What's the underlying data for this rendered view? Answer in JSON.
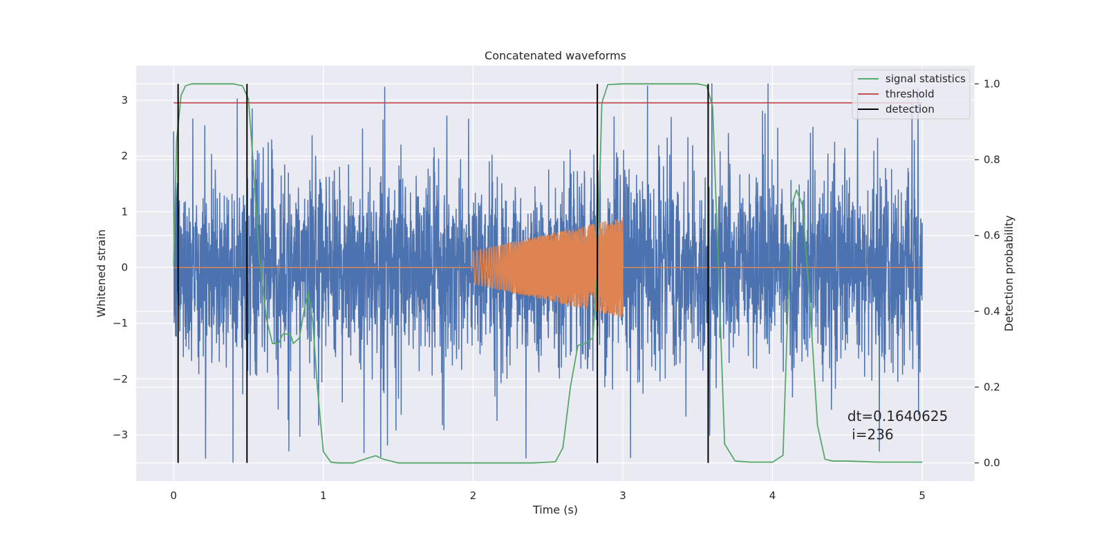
{
  "chart_data": {
    "type": "line",
    "title": "Concatenated waveforms",
    "xlabel": "Time (s)",
    "ylabel": "Whitened strain",
    "y2label": "Detection probability",
    "xlim": [
      -0.25,
      5.35
    ],
    "ylim": [
      -3.83,
      3.62
    ],
    "y2lim": [
      -0.048,
      1.048
    ],
    "xticks": [
      0,
      1,
      2,
      3,
      4,
      5
    ],
    "yticks": [
      -3,
      -2,
      -1,
      0,
      1,
      2,
      3
    ],
    "y2ticks": [
      0.0,
      0.2,
      0.4,
      0.6,
      0.8,
      1.0
    ],
    "y2tick_labels": [
      "0.0",
      "0.2",
      "0.4",
      "0.6",
      "0.8",
      "1.0"
    ],
    "grid": true,
    "legend_position": "top-right",
    "legend": [
      {
        "label": "signal statistics",
        "color": "#55a868"
      },
      {
        "label": "threshold",
        "color": "#c44e52"
      },
      {
        "label": "detection",
        "color": "#000000"
      }
    ],
    "series": [
      {
        "name": "",
        "axis": "left",
        "color": "#4c72b0",
        "kind": "noise",
        "x_range": [
          0,
          5
        ],
        "typical_range": [
          -1.6,
          1.6
        ],
        "extreme_max": 3.3,
        "extreme_min": -3.5
      },
      {
        "name": "",
        "axis": "left",
        "color": "#dd8452",
        "kind": "chirp",
        "x_range": [
          0,
          5
        ],
        "burst_start": 2.0,
        "burst_end": 3.0,
        "amplitude_start": 0.3,
        "amplitude_end": 0.9
      },
      {
        "name": "signal statistics",
        "axis": "right",
        "color": "#55a868",
        "x": [
          0,
          0.02,
          0.05,
          0.08,
          0.12,
          0.2,
          0.4,
          0.46,
          0.5,
          0.53,
          0.57,
          0.62,
          0.66,
          0.7,
          0.73,
          0.78,
          0.8,
          0.84,
          0.88,
          0.9,
          0.93,
          0.96,
          1.0,
          1.05,
          1.1,
          1.2,
          1.3,
          1.35,
          1.4,
          1.5,
          2.0,
          2.4,
          2.55,
          2.6,
          2.65,
          2.7,
          2.75,
          2.8,
          2.83,
          2.86,
          2.9,
          3.0,
          3.5,
          3.56,
          3.6,
          3.64,
          3.68,
          3.75,
          3.85,
          4.0,
          4.07,
          4.1,
          4.13,
          4.16,
          4.2,
          4.25,
          4.3,
          4.35,
          4.4,
          4.5,
          4.7,
          5.0
        ],
        "values": [
          0.52,
          0.85,
          0.97,
          0.995,
          1.0,
          1.0,
          1.0,
          0.995,
          0.96,
          0.8,
          0.55,
          0.38,
          0.315,
          0.315,
          0.34,
          0.34,
          0.315,
          0.33,
          0.42,
          0.45,
          0.37,
          0.2,
          0.03,
          0.002,
          0.0,
          0.0,
          0.013,
          0.019,
          0.01,
          0.0,
          0.0,
          0.0,
          0.003,
          0.04,
          0.2,
          0.31,
          0.315,
          0.33,
          0.5,
          0.95,
          0.998,
          1.0,
          1.0,
          0.995,
          0.94,
          0.5,
          0.05,
          0.005,
          0.002,
          0.002,
          0.02,
          0.38,
          0.68,
          0.72,
          0.68,
          0.42,
          0.1,
          0.01,
          0.005,
          0.005,
          0.002,
          0.002
        ]
      },
      {
        "name": "threshold",
        "axis": "right",
        "color": "#c44e52",
        "x": [
          0,
          5
        ],
        "values": [
          0.95,
          0.95
        ]
      },
      {
        "name": "detection",
        "axis": "right",
        "color": "#000000",
        "kind": "vertical_lines",
        "x": [
          0.03,
          0.49,
          2.83,
          3.57
        ],
        "span": [
          0.0,
          1.0
        ]
      }
    ],
    "annotations": [
      {
        "text": "dt=0.1640625",
        "x": 4.5,
        "y": -2.75
      },
      {
        "text": " i=236",
        "x": 4.5,
        "y": -3.08
      }
    ]
  }
}
